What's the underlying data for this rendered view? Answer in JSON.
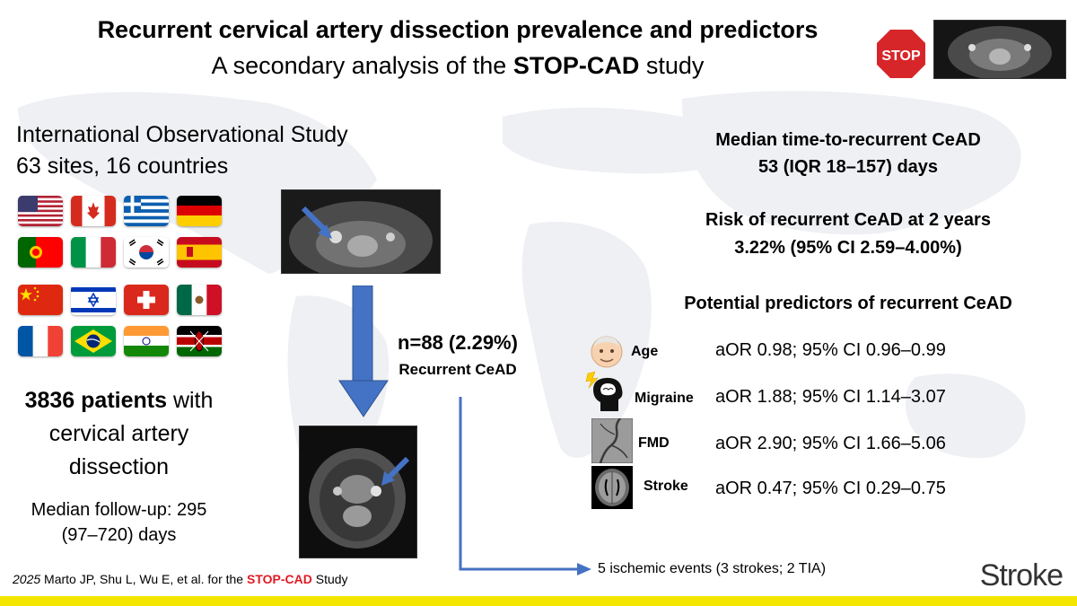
{
  "header": {
    "title": "Recurrent cervical artery dissection prevalence and predictors",
    "subtitle_pre": "A secondary analysis of the ",
    "subtitle_bold": "STOP-CAD",
    "subtitle_post": " study"
  },
  "stop_sign": {
    "label": "STOP",
    "color": "#d7262a"
  },
  "study": {
    "line1": "International Observational Study",
    "line2": "63 sites, 16 countries"
  },
  "flags": [
    {
      "icon": "usa-flag-icon"
    },
    {
      "icon": "canada-flag-icon"
    },
    {
      "icon": "greece-flag-icon"
    },
    {
      "icon": "germany-flag-icon"
    },
    {
      "icon": "portugal-flag-icon"
    },
    {
      "icon": "italy-flag-icon"
    },
    {
      "icon": "south-korea-flag-icon"
    },
    {
      "icon": "spain-flag-icon"
    },
    {
      "icon": "china-flag-icon"
    },
    {
      "icon": "israel-flag-icon"
    },
    {
      "icon": "switzerland-flag-icon"
    },
    {
      "icon": "mexico-flag-icon"
    },
    {
      "icon": "france-flag-icon"
    },
    {
      "icon": "brazil-flag-icon"
    },
    {
      "icon": "india-flag-icon"
    },
    {
      "icon": "kenya-flag-icon"
    }
  ],
  "patients": {
    "count_bold": "3836 patients",
    "count_rest": " with",
    "line2": "cervical artery",
    "line3": "dissection"
  },
  "followup": {
    "line1": "Median follow-up: 295",
    "line2": "(97–720) days"
  },
  "recurrence": {
    "count": "n=88 (2.29%)",
    "label": "Recurrent CeAD"
  },
  "outcome": "5 ischemic events (3 strokes; 2 TIA)",
  "median_time": {
    "title": "Median time-to-recurrent CeAD",
    "value": "53 (IQR 18–157) days"
  },
  "risk": {
    "title": "Risk of recurrent CeAD at 2 years",
    "value": "3.22% (95% CI 2.59–4.00%)"
  },
  "predictors": {
    "title": "Potential predictors of recurrent CeAD",
    "items": [
      {
        "label": "Age",
        "value": "aOR 0.98; 95% CI 0.96–0.99",
        "icon": "elderly-face-icon"
      },
      {
        "label": "Migraine",
        "value": "aOR 1.88; 95% CI 1.14–3.07",
        "icon": "migraine-head-icon"
      },
      {
        "label": "FMD",
        "value": "aOR 2.90; 95% CI 1.66–5.06",
        "icon": "angiogram-icon"
      },
      {
        "label": "Stroke",
        "value": "aOR 0.47; 95% CI 0.29–0.75",
        "icon": "brain-mri-icon"
      }
    ]
  },
  "citation": {
    "year": "2025",
    "authors": " Marto JP, Shu L, Wu E, et al. for the ",
    "study": "STOP-CAD",
    "suffix": " Study"
  },
  "journal": "Stroke",
  "colors": {
    "arrow": "#4472c4",
    "accent_bar": "#f4e600",
    "highlight": "#e01b24"
  }
}
